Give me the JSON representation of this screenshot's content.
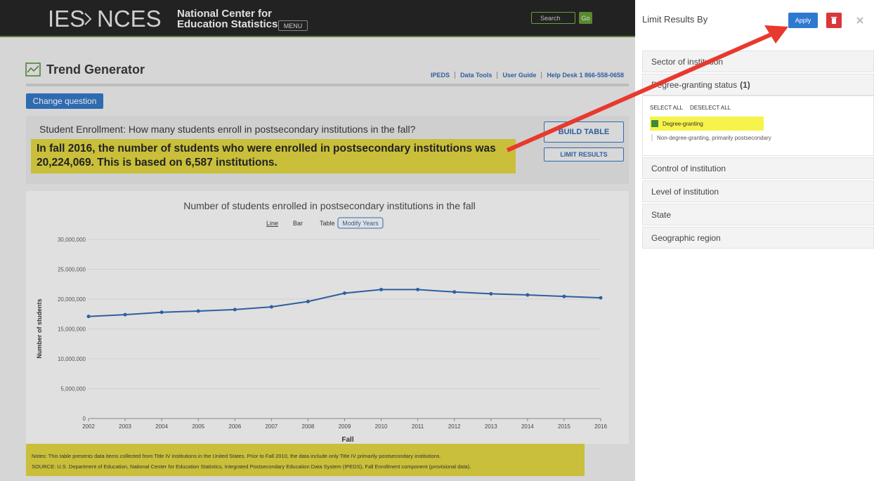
{
  "header": {
    "logo_ies": "IES",
    "logo_nces": "NCES",
    "org_line1": "National Center for",
    "org_line2": "Education Statistics",
    "menu": "MENU",
    "search": "Search",
    "go": "Go"
  },
  "page": {
    "title": "Trend Generator",
    "links": [
      "IPEDS",
      "Data Tools",
      "User Guide",
      "Help Desk 1 866-558-0658"
    ],
    "change_question": "Change question",
    "question": "Student Enrollment: How many students enroll in postsecondary institutions in the fall?",
    "answer": "In fall 2016, the number of students who were enrolled in postsecondary institutions was 20,224,069. This is based on 6,587 institutions.",
    "build_table": "BUILD TABLE",
    "limit_results": "LIMIT RESULTS",
    "chart_views": [
      "Line",
      "Bar",
      "Table"
    ],
    "modify_years": "Modify Years",
    "notes": "Notes: This table presents data items collected from Title IV institutions in the United States. Prior to Fall 2010, the data include only Title IV primarily postsecondary institutions.",
    "source": "SOURCE: U.S. Department of Education, National Center for Education Statistics, Integrated Postsecondary Education Data System (IPEDS), Fall Enrollment component (provisional data)."
  },
  "chart_data": {
    "type": "line",
    "title": "Number of students enrolled in postsecondary institutions in the fall",
    "x_label": "Fall",
    "y_label": "Number of students",
    "categories": [
      "2002",
      "2003",
      "2004",
      "2005",
      "2006",
      "2007",
      "2008",
      "2009",
      "2010",
      "2011",
      "2012",
      "2013",
      "2014",
      "2015",
      "2016"
    ],
    "series": [
      {
        "name": "Number of students",
        "color": "#2e5f9e",
        "values": [
          17100000,
          17400000,
          17800000,
          18000000,
          18250000,
          18700000,
          19600000,
          21000000,
          21600000,
          21600000,
          21200000,
          20900000,
          20700000,
          20450000,
          20224069
        ]
      }
    ],
    "ylim": [
      0,
      30000000
    ],
    "yticks": [
      0,
      {
        "value": 5000000,
        "label": "5,000,000"
      },
      {
        "value": 10000000,
        "label": "10,000,000"
      },
      {
        "value": 15000000,
        "label": "15,000,000"
      },
      {
        "value": 20000000,
        "label": "20,000,000"
      },
      {
        "value": 25000000,
        "label": "25,000,000"
      },
      {
        "value": 30000000,
        "label": "30,000,000"
      }
    ],
    "grid": true
  },
  "panel": {
    "title": "Limit Results By",
    "apply": "Apply",
    "filters": [
      {
        "name": "Sector of institution"
      },
      {
        "name": "Degree-granting status",
        "count": "(1)",
        "select_all": "SELECT ALL",
        "deselect_all": "DESELECT ALL",
        "options": [
          {
            "label": "Degree-granting",
            "checked": true
          },
          {
            "label": "Non-degree-granting, primarily postsecondary",
            "checked": false
          }
        ]
      },
      {
        "name": "Control of institution"
      },
      {
        "name": "Level of institution"
      },
      {
        "name": "State"
      },
      {
        "name": "Geographic region"
      }
    ]
  }
}
